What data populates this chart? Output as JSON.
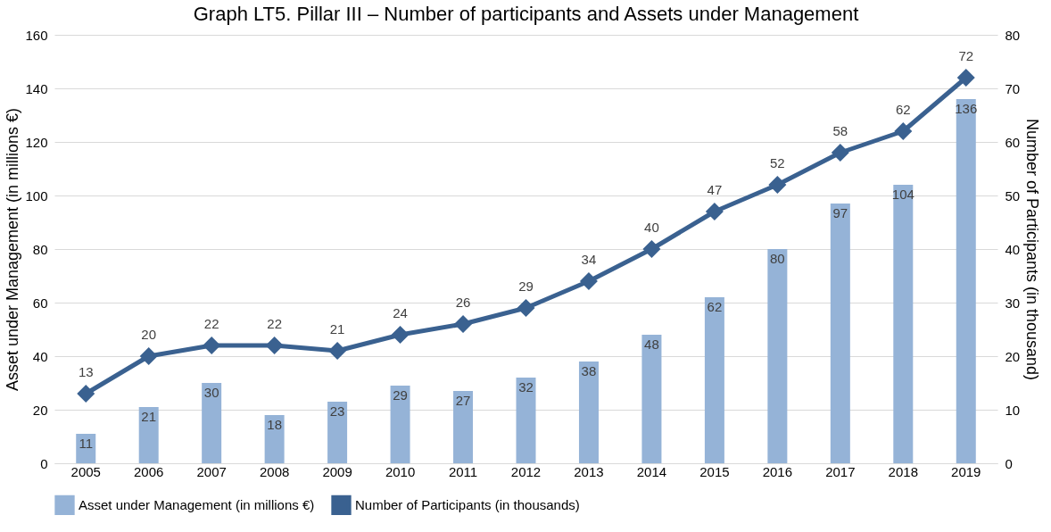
{
  "chart_data": {
    "type": "bar",
    "title": "Graph LT5. Pillar III – Number of participants and Assets under Management",
    "categories": [
      "2005",
      "2006",
      "2007",
      "2008",
      "2009",
      "2010",
      "2011",
      "2012",
      "2013",
      "2014",
      "2015",
      "2016",
      "2017",
      "2018",
      "2019"
    ],
    "series": [
      {
        "name": "Asset under Management (in millions €)",
        "color": "#95b3d7",
        "values": [
          11,
          21,
          30,
          18,
          23,
          29,
          27,
          32,
          38,
          48,
          62,
          80,
          97,
          104,
          136
        ]
      },
      {
        "name": "Number of Participants (in thousands)",
        "type": "line",
        "axis": "y2",
        "color": "#3a6190",
        "marker": "diamond",
        "values": [
          13,
          20,
          22,
          22,
          21,
          24,
          26,
          29,
          34,
          40,
          47,
          52,
          58,
          62,
          72
        ]
      }
    ],
    "ylabel": "Asset under Management (in millions €)",
    "y2label": "Number of Participants (in thousand)",
    "ylim": [
      0,
      160
    ],
    "yticks": [
      0,
      20,
      40,
      60,
      80,
      100,
      120,
      140,
      160
    ],
    "y2lim": [
      0,
      80
    ],
    "y2ticks": [
      0,
      10,
      20,
      30,
      40,
      50,
      60,
      70,
      80
    ],
    "data_labels": true,
    "grid": "y",
    "legend": "bottom"
  }
}
